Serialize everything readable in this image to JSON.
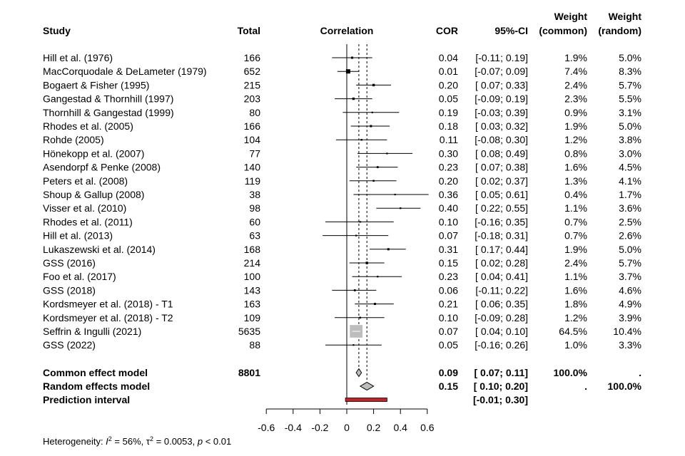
{
  "chart_data": {
    "type": "forest",
    "columns": {
      "study": "Study",
      "total": "Total",
      "plot": "Correlation",
      "cor": "COR",
      "ci": "95%-CI",
      "w_common_1": "Weight",
      "w_common_2": "(common)",
      "w_random_1": "Weight",
      "w_random_2": "(random)"
    },
    "studies": [
      {
        "name": "Hill et al. (1976)",
        "total": "166",
        "cor": 0.04,
        "lo": -0.11,
        "hi": 0.19,
        "cor_text": "0.04",
        "ci_text": "[-0.11; 0.19]",
        "w_common": "1.9%",
        "w_random": "5.0%",
        "wc": 1.9
      },
      {
        "name": "MacCorquodale & DeLameter (1979)",
        "total": "652",
        "cor": 0.01,
        "lo": -0.07,
        "hi": 0.09,
        "cor_text": "0.01",
        "ci_text": "[-0.07; 0.09]",
        "w_common": "7.4%",
        "w_random": "8.3%",
        "wc": 7.4
      },
      {
        "name": "Bogaert & Fisher (1995)",
        "total": "215",
        "cor": 0.2,
        "lo": 0.07,
        "hi": 0.33,
        "cor_text": "0.20",
        "ci_text": "[ 0.07; 0.33]",
        "w_common": "2.4%",
        "w_random": "5.7%",
        "wc": 2.4
      },
      {
        "name": "Gangestad & Thornhill (1997)",
        "total": "203",
        "cor": 0.05,
        "lo": -0.09,
        "hi": 0.19,
        "cor_text": "0.05",
        "ci_text": "[-0.09; 0.19]",
        "w_common": "2.3%",
        "w_random": "5.5%",
        "wc": 2.3
      },
      {
        "name": "Thornhill & Gangestad (1999)",
        "total": "80",
        "cor": 0.19,
        "lo": -0.03,
        "hi": 0.39,
        "cor_text": "0.19",
        "ci_text": "[-0.03; 0.39]",
        "w_common": "0.9%",
        "w_random": "3.1%",
        "wc": 0.9
      },
      {
        "name": "Rhodes et al. (2005)",
        "total": "166",
        "cor": 0.18,
        "lo": 0.03,
        "hi": 0.32,
        "cor_text": "0.18",
        "ci_text": "[ 0.03; 0.32]",
        "w_common": "1.9%",
        "w_random": "5.0%",
        "wc": 1.9
      },
      {
        "name": "Rohde (2005)",
        "total": "104",
        "cor": 0.11,
        "lo": -0.08,
        "hi": 0.3,
        "cor_text": "0.11",
        "ci_text": "[-0.08; 0.30]",
        "w_common": "1.2%",
        "w_random": "3.8%",
        "wc": 1.2
      },
      {
        "name": "Hönekopp et al. (2007)",
        "total": "77",
        "cor": 0.3,
        "lo": 0.08,
        "hi": 0.49,
        "cor_text": "0.30",
        "ci_text": "[ 0.08; 0.49]",
        "w_common": "0.8%",
        "w_random": "3.0%",
        "wc": 0.8
      },
      {
        "name": "Asendorpf & Penke (2008)",
        "total": "140",
        "cor": 0.23,
        "lo": 0.07,
        "hi": 0.38,
        "cor_text": "0.23",
        "ci_text": "[ 0.07; 0.38]",
        "w_common": "1.6%",
        "w_random": "4.5%",
        "wc": 1.6
      },
      {
        "name": "Peters et al. (2008)",
        "total": "119",
        "cor": 0.2,
        "lo": 0.02,
        "hi": 0.37,
        "cor_text": "0.20",
        "ci_text": "[ 0.02; 0.37]",
        "w_common": "1.3%",
        "w_random": "4.1%",
        "wc": 1.3
      },
      {
        "name": "Shoup & Gallup (2008)",
        "total": "38",
        "cor": 0.36,
        "lo": 0.05,
        "hi": 0.61,
        "cor_text": "0.36",
        "ci_text": "[ 0.05; 0.61]",
        "w_common": "0.4%",
        "w_random": "1.7%",
        "wc": 0.4
      },
      {
        "name": "Visser et al. (2010)",
        "total": "98",
        "cor": 0.4,
        "lo": 0.22,
        "hi": 0.55,
        "cor_text": "0.40",
        "ci_text": "[ 0.22; 0.55]",
        "w_common": "1.1%",
        "w_random": "3.6%",
        "wc": 1.1
      },
      {
        "name": "Rhodes et al. (2011)",
        "total": "60",
        "cor": 0.1,
        "lo": -0.16,
        "hi": 0.35,
        "cor_text": "0.10",
        "ci_text": "[-0.16; 0.35]",
        "w_common": "0.7%",
        "w_random": "2.5%",
        "wc": 0.7
      },
      {
        "name": "Hill et al. (2013)",
        "total": "63",
        "cor": 0.07,
        "lo": -0.18,
        "hi": 0.31,
        "cor_text": "0.07",
        "ci_text": "[-0.18; 0.31]",
        "w_common": "0.7%",
        "w_random": "2.6%",
        "wc": 0.7
      },
      {
        "name": "Lukaszewski et al. (2014)",
        "total": "168",
        "cor": 0.31,
        "lo": 0.17,
        "hi": 0.44,
        "cor_text": "0.31",
        "ci_text": "[ 0.17; 0.44]",
        "w_common": "1.9%",
        "w_random": "5.0%",
        "wc": 1.9
      },
      {
        "name": "GSS (2016)",
        "total": "214",
        "cor": 0.15,
        "lo": 0.02,
        "hi": 0.28,
        "cor_text": "0.15",
        "ci_text": "[ 0.02; 0.28]",
        "w_common": "2.4%",
        "w_random": "5.7%",
        "wc": 2.4
      },
      {
        "name": "Foo et al. (2017)",
        "total": "100",
        "cor": 0.23,
        "lo": 0.04,
        "hi": 0.41,
        "cor_text": "0.23",
        "ci_text": "[ 0.04; 0.41]",
        "w_common": "1.1%",
        "w_random": "3.7%",
        "wc": 1.1
      },
      {
        "name": "GSS (2018)",
        "total": "143",
        "cor": 0.06,
        "lo": -0.11,
        "hi": 0.22,
        "cor_text": "0.06",
        "ci_text": "[-0.11; 0.22]",
        "w_common": "1.6%",
        "w_random": "4.6%",
        "wc": 1.6
      },
      {
        "name": "Kordsmeyer et al. (2018) - T1",
        "total": "163",
        "cor": 0.21,
        "lo": 0.06,
        "hi": 0.35,
        "cor_text": "0.21",
        "ci_text": "[ 0.06; 0.35]",
        "w_common": "1.8%",
        "w_random": "4.9%",
        "wc": 1.8
      },
      {
        "name": "Kordsmeyer et al. (2018) - T2",
        "total": "109",
        "cor": 0.1,
        "lo": -0.09,
        "hi": 0.28,
        "cor_text": "0.10",
        "ci_text": "[-0.09; 0.28]",
        "w_common": "1.2%",
        "w_random": "3.9%",
        "wc": 1.2
      },
      {
        "name": "Seffrin & Ingulli (2021)",
        "total": "5635",
        "cor": 0.07,
        "lo": 0.04,
        "hi": 0.1,
        "cor_text": "0.07",
        "ci_text": "[ 0.04; 0.10]",
        "w_common": "64.5%",
        "w_random": "10.4%",
        "wc": 64.5
      },
      {
        "name": "GSS (2022)",
        "total": "88",
        "cor": 0.05,
        "lo": -0.16,
        "hi": 0.26,
        "cor_text": "0.05",
        "ci_text": "[-0.16; 0.26]",
        "w_common": "1.0%",
        "w_random": "3.3%",
        "wc": 1.0
      }
    ],
    "common": {
      "label": "Common effect model",
      "total": "8801",
      "cor": 0.09,
      "lo": 0.07,
      "hi": 0.11,
      "cor_text": "0.09",
      "ci_text": "[ 0.07; 0.11]",
      "w_common": "100.0%",
      "w_random": "."
    },
    "random": {
      "label": "Random effects model",
      "cor": 0.15,
      "lo": 0.1,
      "hi": 0.2,
      "cor_text": "0.15",
      "ci_text": "[ 0.10; 0.20]",
      "w_common": ".",
      "w_random": "100.0%"
    },
    "prediction": {
      "label": "Prediction interval",
      "lo": -0.01,
      "hi": 0.3,
      "ci_text": "[-0.01; 0.30]"
    },
    "x_axis": {
      "min": -0.6,
      "max": 0.6,
      "ticks": [
        -0.6,
        -0.4,
        -0.2,
        0,
        0.2,
        0.4,
        0.6
      ],
      "tick_labels": [
        "-0.6",
        "-0.4",
        "-0.2",
        "0",
        "0.2",
        "0.4",
        "0.6"
      ]
    },
    "null_line": 0,
    "heterogeneity": {
      "prefix": "Heterogeneity: ",
      "i2_symbol": "I",
      "i2_value": " = 56%, ",
      "tau_symbol": "τ",
      "tau_value": " = 0.0053, ",
      "p_symbol": "p",
      "p_value": " < 0.01"
    },
    "colors": {
      "square": "#000000",
      "big_square": "#bdbdbd",
      "diamond": "#bdbdbd",
      "prediction": "#c0242a"
    }
  }
}
